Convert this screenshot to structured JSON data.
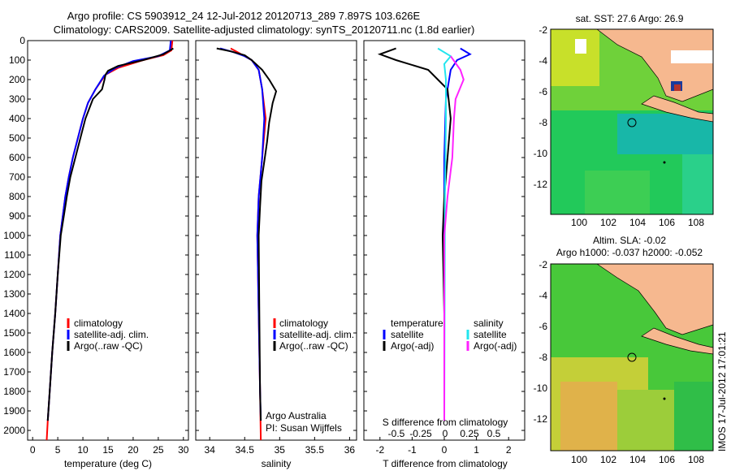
{
  "header": {
    "line1": "Argo profile: CS 5903912_24 12-Jul-2012 20120713_289 7.897S 103.626E",
    "line2": "Climatology: CARS2009. Satellite-adjusted climatology: synTS_20120711.nc (1.8d earlier)"
  },
  "side_text": "IMOS 17-Jul-2012 17:01:21",
  "colors": {
    "climatology": "#ff0000",
    "satellite": "#0000ff",
    "argo": "#000000",
    "salinity_sat": "#22e5ee",
    "salinity_argo": "#ff22ff",
    "land": "#f6b88f"
  },
  "chart_data": [
    {
      "type": "line",
      "xlabel": "temperature (deg C)",
      "ylim": [
        2050,
        0
      ],
      "xlim": [
        -1,
        31
      ],
      "yticks": [
        "0",
        "100",
        "200",
        "300",
        "400",
        "500",
        "600",
        "700",
        "800",
        "900",
        "1000",
        "1100",
        "1200",
        "1300",
        "1400",
        "1500",
        "1600",
        "1700",
        "1800",
        "1900",
        "2000"
      ],
      "xticks": [
        "0",
        "5",
        "10",
        "15",
        "20",
        "25",
        "30"
      ],
      "legend": [
        "climatology",
        "satellite-adj. clim.",
        "Argo(..raw -QC)"
      ],
      "series": [
        {
          "name": "climatology",
          "points": [
            [
              27.8,
              0
            ],
            [
              27.6,
              50
            ],
            [
              26,
              75
            ],
            [
              22,
              100
            ],
            [
              17,
              140
            ],
            [
              14.5,
              175
            ],
            [
              12.5,
              250
            ],
            [
              11,
              320
            ],
            [
              10,
              400
            ],
            [
              9,
              500
            ],
            [
              8,
              600
            ],
            [
              7.2,
              700
            ],
            [
              6.5,
              800
            ],
            [
              6,
              900
            ],
            [
              5.5,
              1000
            ],
            [
              5,
              1200
            ],
            [
              4.5,
              1400
            ],
            [
              3.9,
              1600
            ],
            [
              3.4,
              1800
            ],
            [
              3,
              1950
            ],
            [
              2.8,
              2050
            ]
          ]
        },
        {
          "name": "satellite-adj. clim.",
          "points": [
            [
              27.5,
              0
            ],
            [
              27.3,
              50
            ],
            [
              25,
              80
            ],
            [
              20,
              105
            ],
            [
              16.5,
              140
            ],
            [
              14.2,
              180
            ],
            [
              12.5,
              250
            ],
            [
              11,
              320
            ],
            [
              10,
              400
            ],
            [
              9,
              500
            ],
            [
              8,
              600
            ],
            [
              7.2,
              700
            ],
            [
              6.5,
              800
            ],
            [
              6,
              900
            ],
            [
              5.5,
              1000
            ],
            [
              5,
              1200
            ],
            [
              4.5,
              1400
            ],
            [
              3.9,
              1600
            ],
            [
              3.4,
              1800
            ],
            [
              3,
              1950
            ]
          ]
        },
        {
          "name": "Argo(..raw -QC)",
          "points": [
            [
              28,
              40
            ],
            [
              27,
              55
            ],
            [
              26,
              70
            ],
            [
              22,
              100
            ],
            [
              17,
              130
            ],
            [
              15,
              155
            ],
            [
              14.5,
              175
            ],
            [
              14.3,
              200
            ],
            [
              13.8,
              250
            ],
            [
              12,
              300
            ],
            [
              10.5,
              400
            ],
            [
              9.5,
              500
            ],
            [
              8.5,
              600
            ],
            [
              7.5,
              700
            ],
            [
              6.8,
              800
            ],
            [
              6.2,
              900
            ],
            [
              5.6,
              1000
            ],
            [
              5,
              1200
            ],
            [
              4.5,
              1400
            ],
            [
              3.9,
              1600
            ],
            [
              3.4,
              1800
            ],
            [
              3,
              1950
            ]
          ]
        }
      ]
    },
    {
      "type": "line",
      "xlabel": "salinity",
      "ylim": [
        2050,
        0
      ],
      "xlim": [
        33.8,
        36.1
      ],
      "xticks": [
        "34",
        "34.5",
        "35",
        "35.5",
        "36"
      ],
      "legend": [
        "climatology",
        "satellite-adj. clim.",
        "Argo(..raw -QC)"
      ],
      "annotations": [
        "Argo Australia",
        "PI: Susan Wijffels"
      ],
      "series": [
        {
          "name": "climatology",
          "points": [
            [
              34.3,
              40
            ],
            [
              34.4,
              60
            ],
            [
              34.5,
              80
            ],
            [
              34.6,
              100
            ],
            [
              34.7,
              150
            ],
            [
              34.75,
              250
            ],
            [
              34.8,
              400
            ],
            [
              34.75,
              600
            ],
            [
              34.7,
              800
            ],
            [
              34.68,
              1000
            ],
            [
              34.7,
              1400
            ],
            [
              34.72,
              1800
            ],
            [
              34.73,
              2050
            ]
          ]
        },
        {
          "name": "satellite-adj. clim.",
          "points": [
            [
              34.15,
              40
            ],
            [
              34.35,
              60
            ],
            [
              34.5,
              80
            ],
            [
              34.6,
              100
            ],
            [
              34.7,
              150
            ],
            [
              34.75,
              250
            ],
            [
              34.78,
              400
            ],
            [
              34.75,
              600
            ],
            [
              34.7,
              800
            ],
            [
              34.68,
              1000
            ],
            [
              34.7,
              1400
            ],
            [
              34.72,
              1800
            ],
            [
              34.73,
              1950
            ]
          ]
        },
        {
          "name": "Argo(..raw -QC)",
          "points": [
            [
              34.1,
              40
            ],
            [
              34.3,
              55
            ],
            [
              34.5,
              75
            ],
            [
              34.6,
              100
            ],
            [
              34.75,
              150
            ],
            [
              34.85,
              200
            ],
            [
              34.95,
              260
            ],
            [
              34.9,
              320
            ],
            [
              34.85,
              420
            ],
            [
              34.82,
              520
            ],
            [
              34.78,
              620
            ],
            [
              34.74,
              720
            ],
            [
              34.72,
              850
            ],
            [
              34.7,
              1000
            ],
            [
              34.71,
              1400
            ],
            [
              34.72,
              1800
            ],
            [
              34.73,
              1950
            ]
          ]
        }
      ]
    },
    {
      "type": "line",
      "xlabel": "T difference from climatology",
      "title_bottom": "S difference from climatology",
      "ylim": [
        2050,
        0
      ],
      "xlim": [
        -2.5,
        2.5
      ],
      "xticks": [
        "-2",
        "-1",
        "0",
        "1",
        "2"
      ],
      "s_ticks": [
        "-0.5",
        "-0.25",
        "0",
        "0.25",
        "0.5"
      ],
      "legend_left_title": "temperature",
      "legend_right_title": "salinity",
      "legend_left": [
        "satellite",
        "Argo(-adj)"
      ],
      "legend_right": [
        "satellite",
        "Argo(-adj)"
      ],
      "series": [
        {
          "name": "satellite",
          "points": [
            [
              0.5,
              40
            ],
            [
              0.8,
              70
            ],
            [
              0.4,
              100
            ],
            [
              0.2,
              150
            ],
            [
              0.05,
              300
            ],
            [
              0,
              600
            ],
            [
              0,
              1000
            ],
            [
              0,
              1950
            ]
          ]
        },
        {
          "name": "Argo(-adj)",
          "points": [
            [
              -1.5,
              40
            ],
            [
              -2,
              70
            ],
            [
              -1.5,
              100
            ],
            [
              -0.5,
              150
            ],
            [
              0.1,
              250
            ],
            [
              0.2,
              400
            ],
            [
              0.1,
              600
            ],
            [
              0,
              800
            ],
            [
              -0.05,
              1000
            ],
            [
              0,
              1400
            ],
            [
              0,
              1950
            ]
          ]
        },
        {
          "name": "satellite (S)",
          "points": [
            [
              -0.2,
              40
            ],
            [
              0.2,
              80
            ],
            [
              0,
              120
            ],
            [
              0.05,
              200
            ],
            [
              0.05,
              400
            ],
            [
              0.02,
              800
            ],
            [
              0,
              1950
            ]
          ]
        },
        {
          "name": "Argo(-adj) (S)",
          "points": [
            [
              0.2,
              80
            ],
            [
              0.5,
              150
            ],
            [
              0.6,
              200
            ],
            [
              0.35,
              300
            ],
            [
              0.3,
              400
            ],
            [
              0.25,
              600
            ],
            [
              0.1,
              800
            ],
            [
              0,
              1000
            ],
            [
              0,
              1950
            ]
          ]
        }
      ]
    },
    {
      "type": "heatmap",
      "title": "sat. SST: 27.6 Argo: 26.9",
      "xticks": [
        "100",
        "102",
        "104",
        "106",
        "108"
      ],
      "yticks": [
        "-2",
        "-4",
        "-6",
        "-8",
        "-10",
        "-12"
      ]
    },
    {
      "type": "heatmap",
      "title": "Altim. SLA: -0.02",
      "title2": "Argo h1000: -0.037 h2000: -0.052",
      "xticks": [
        "100",
        "102",
        "104",
        "106",
        "108"
      ],
      "yticks": [
        "-2",
        "-4",
        "-6",
        "-8",
        "-10",
        "-12"
      ]
    }
  ]
}
